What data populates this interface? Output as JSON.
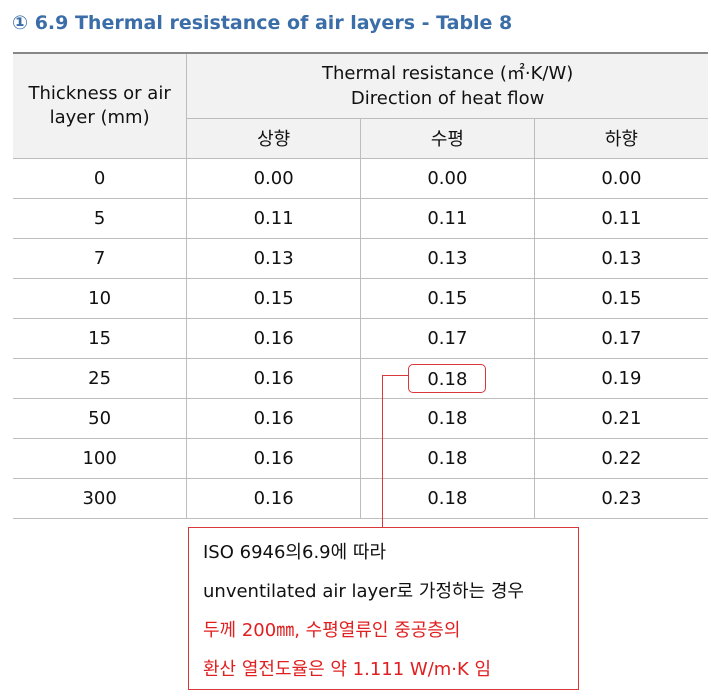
{
  "header": {
    "title": "① 6.9 Thermal resistance of air layers - Table 8"
  },
  "table": {
    "header": {
      "thickness": "Thickness or air layer (mm)",
      "resistance": "Thermal resistance (㎡·K/W)",
      "direction": "Direction of heat flow",
      "directions": [
        "상향",
        "수평",
        "하향"
      ]
    },
    "rows": [
      [
        "0",
        "0.00",
        "0.00",
        "0.00"
      ],
      [
        "5",
        "0.11",
        "0.11",
        "0.11"
      ],
      [
        "7",
        "0.13",
        "0.13",
        "0.13"
      ],
      [
        "10",
        "0.15",
        "0.15",
        "0.15"
      ],
      [
        "15",
        "0.16",
        "0.17",
        "0.17"
      ],
      [
        "25",
        "0.16",
        "0.18",
        "0.19"
      ],
      [
        "50",
        "0.16",
        "0.18",
        "0.21"
      ],
      [
        "100",
        "0.16",
        "0.18",
        "0.22"
      ],
      [
        "300",
        "0.16",
        "0.18",
        "0.23"
      ]
    ]
  },
  "callout": {
    "lines": [
      "ISO 6946의6.9에 따라",
      "unventilated air layer로 가정하는 경우",
      "두께 200㎜, 수평열류인 중공층의",
      "환산 열전도율은 약 1.111 W/m·K 임"
    ]
  }
}
